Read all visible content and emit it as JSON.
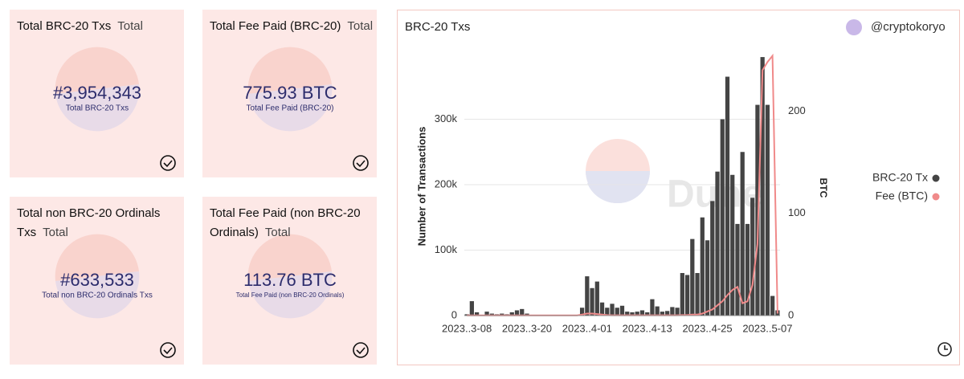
{
  "counters": [
    {
      "title": "Total BRC-20 Txs",
      "subtitle": "Total",
      "value": "#3,954,343",
      "label": "Total BRC-20 Txs"
    },
    {
      "title": "Total Fee Paid (BRC-20)",
      "subtitle": "Total",
      "value": "775.93 BTC",
      "label": "Total Fee Paid (BRC-20)"
    },
    {
      "title": "Total non BRC-20 Ordinals Txs",
      "subtitle": "Total",
      "value": "#633,533",
      "label": "Total non BRC-20 Ordinals Txs"
    },
    {
      "title": "Total Fee Paid (non BRC-20 Ordinals)",
      "subtitle": "Total",
      "value": "113.76 BTC",
      "label": "Total Fee Paid (non BRC-20 Ordinals)"
    }
  ],
  "chart_data": {
    "type": "bar_line",
    "title": "BRC-20 Txs",
    "author": "@cryptokoryo",
    "watermark": "Dune",
    "y_label": "Number of Transactions",
    "y2_label": "BTC",
    "categories": [
      "2023..3-08",
      null,
      null,
      null,
      null,
      null,
      null,
      null,
      null,
      null,
      null,
      null,
      "2023..3-20",
      null,
      null,
      null,
      null,
      null,
      null,
      null,
      null,
      null,
      null,
      null,
      "2023..4-01",
      null,
      null,
      null,
      null,
      null,
      null,
      null,
      null,
      null,
      null,
      null,
      "2023..4-13",
      null,
      null,
      null,
      null,
      null,
      null,
      null,
      null,
      null,
      null,
      null,
      "2023..4-25",
      null,
      null,
      null,
      null,
      null,
      null,
      null,
      null,
      null,
      null,
      null,
      "2023..5-07",
      null,
      null
    ],
    "series": [
      {
        "name": "BRC-20 Tx",
        "type": "bar",
        "color": "#444444",
        "axis": "y",
        "values": [
          2000,
          22000,
          5000,
          1000,
          6000,
          3000,
          2000,
          3000,
          2000,
          5000,
          8000,
          10000,
          3000,
          500,
          500,
          500,
          500,
          500,
          500,
          500,
          500,
          500,
          500,
          12000,
          60000,
          42000,
          52000,
          20000,
          12000,
          18000,
          12000,
          15000,
          6000,
          5000,
          6000,
          8000,
          5000,
          25000,
          14000,
          6000,
          7000,
          13000,
          12000,
          65000,
          62000,
          117000,
          65000,
          150000,
          115000,
          175000,
          220000,
          300000,
          365000,
          215000,
          140000,
          250000,
          140000,
          180000,
          322000,
          395000,
          322000,
          30000,
          8000
        ]
      },
      {
        "name": "Fee (BTC)",
        "type": "line",
        "color": "#f08a8a",
        "axis": "y2",
        "values": [
          0.2,
          0.2,
          0.2,
          0.2,
          0.2,
          0.2,
          0.2,
          0.2,
          0.2,
          0.2,
          0.2,
          0.2,
          0.2,
          0.2,
          0.2,
          0.2,
          0.2,
          0.2,
          0.2,
          0.2,
          0.2,
          0.2,
          0.2,
          1,
          2,
          2,
          1.5,
          1,
          0.5,
          0.3,
          0.3,
          0.3,
          0.3,
          0.3,
          0.3,
          0.3,
          0.3,
          0.3,
          0.3,
          0.3,
          0.3,
          0.3,
          0.3,
          0.5,
          0.5,
          1,
          1,
          2,
          4,
          6,
          10,
          14,
          20,
          25,
          28,
          12,
          14,
          30,
          70,
          240,
          248,
          254,
          2
        ]
      }
    ],
    "ylim": [
      0,
      400000
    ],
    "yticks": [
      0,
      {
        "value": 100000,
        "label": "100k"
      },
      {
        "value": 200000,
        "label": "200k"
      },
      {
        "value": 300000,
        "label": "300k"
      }
    ],
    "y2lim": [
      0,
      256
    ],
    "y2ticks": [
      0,
      100,
      200
    ],
    "grid": true,
    "legend": "right"
  }
}
